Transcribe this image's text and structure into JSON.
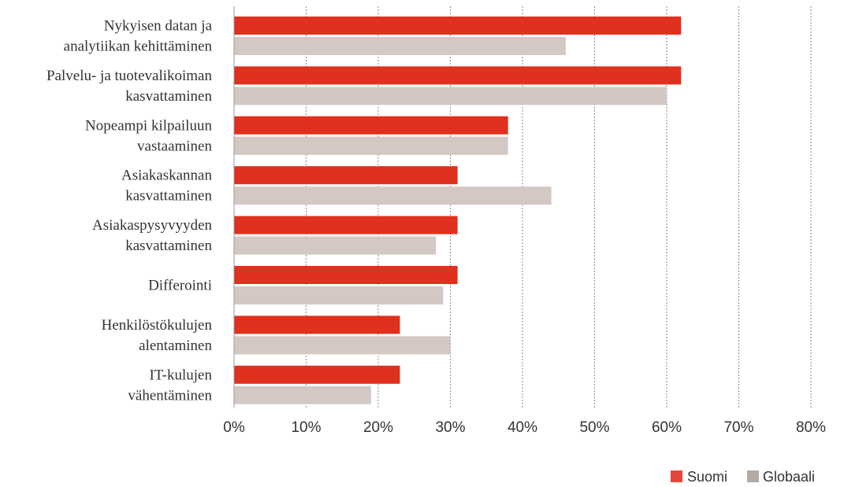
{
  "chart_data": {
    "type": "bar",
    "orientation": "horizontal",
    "categories": [
      [
        "Nykyisen datan ja",
        "analytiikan kehittäminen"
      ],
      [
        "Palvelu- ja tuotevalikoiman",
        "kasvattaminen"
      ],
      [
        "Nopeampi kilpailuun",
        "vastaaminen"
      ],
      [
        "Asiakaskannan",
        "kasvattaminen"
      ],
      [
        "Asiakaspysyvyyden",
        "kasvattaminen"
      ],
      [
        "Differointi"
      ],
      [
        "Henkilöstökulujen",
        "alentaminen"
      ],
      [
        "IT-kulujen",
        "vähentäminen"
      ]
    ],
    "series": [
      {
        "name": "Suomi",
        "color": "#e0301e",
        "legend_color": "#e8453a",
        "values": [
          62,
          62,
          38,
          31,
          31,
          31,
          23,
          23
        ]
      },
      {
        "name": "Globaali",
        "color": "#d3c8c4",
        "legend_color": "#b3aaa4",
        "values": [
          46,
          60,
          38,
          44,
          28,
          29,
          30,
          19
        ]
      }
    ],
    "xlim": [
      0,
      80
    ],
    "xticks": [
      0,
      10,
      20,
      30,
      40,
      50,
      60,
      70,
      80
    ],
    "xtick_labels": [
      "0%",
      "10%",
      "20%",
      "30%",
      "40%",
      "50%",
      "60%",
      "70%",
      "80%"
    ],
    "grid": true,
    "grid_style": "dotted",
    "legend_position": "bottom-right"
  }
}
